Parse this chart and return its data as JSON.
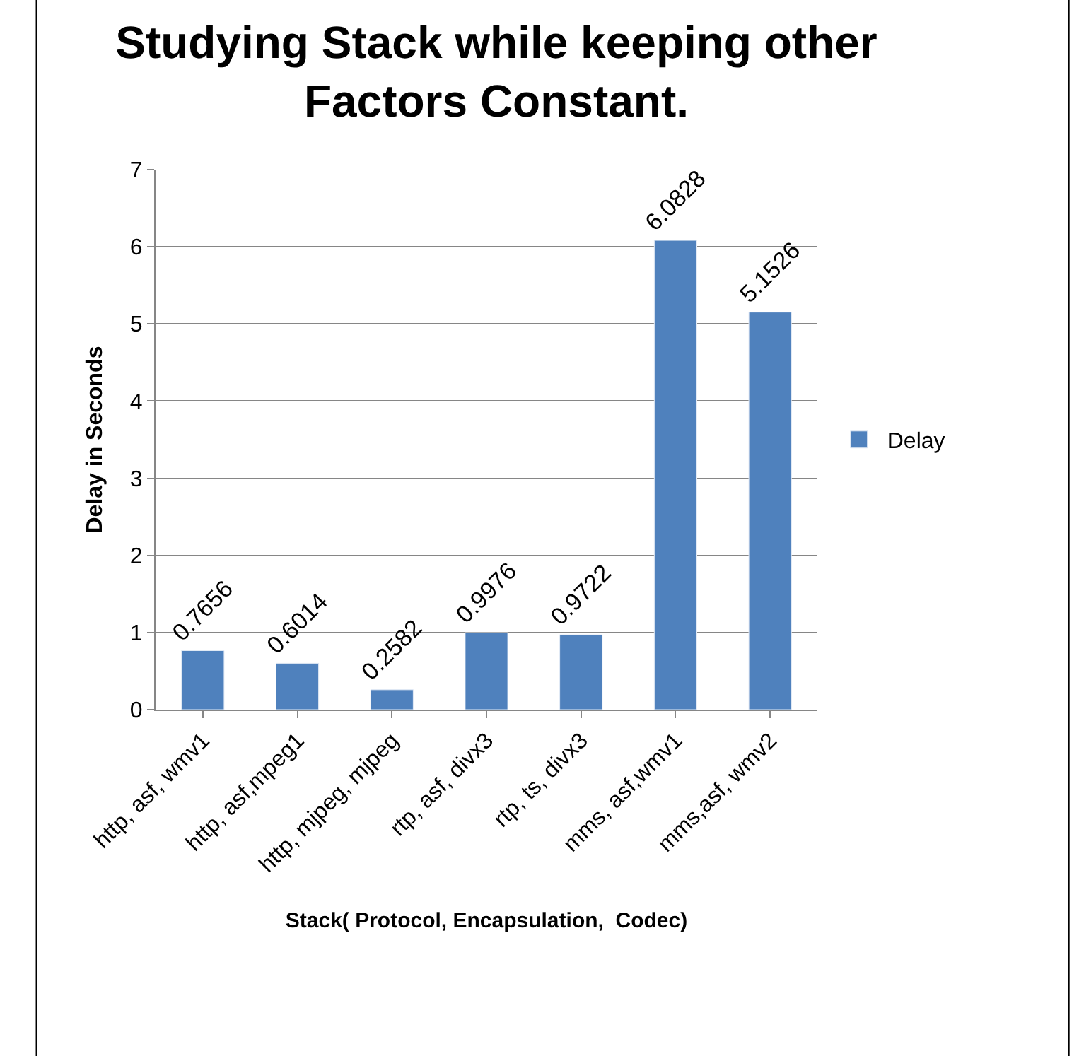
{
  "chart_data": {
    "type": "bar",
    "title": "Studying Stack while keeping other Factors Constant.",
    "xlabel": "Stack( Protocol, Encapsulation,  Codec)",
    "ylabel": "Delay in Seconds",
    "categories": [
      "http, asf, wmv1",
      "http, asf,mpeg1",
      "http, mjpeg, mjpeg",
      "rtp, asf, divx3",
      "rtp, ts, divx3",
      "mms, asf,wmv1",
      "mms,asf, wmv2"
    ],
    "series": [
      {
        "name": "Delay",
        "color": "#4f81bd",
        "values": [
          0.7656,
          0.6014,
          0.2582,
          0.9976,
          0.9722,
          6.0828,
          5.1526
        ]
      }
    ],
    "ylim": [
      0,
      7
    ],
    "yticks": [
      0,
      1,
      2,
      3,
      4,
      5,
      6,
      7
    ],
    "grid": "y",
    "legend": "right",
    "data_labels": true
  }
}
